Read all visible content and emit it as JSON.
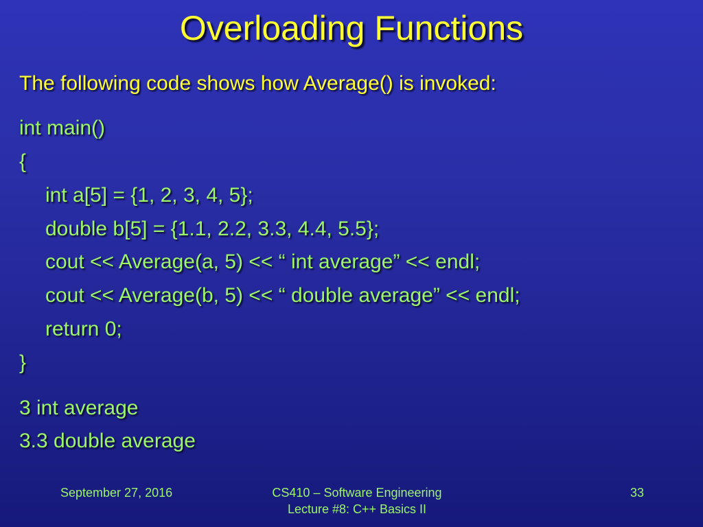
{
  "slide": {
    "title": "Overloading Functions",
    "intro": "The following code shows how Average() is invoked:",
    "code": [
      "int main()",
      "{",
      "int a[5] = {1, 2, 3, 4, 5};",
      "double b[5] = {1.1, 2.2, 3.3, 4.4, 5.5};",
      "cout << Average(a, 5) << “ int average” << endl;",
      "cout << Average(b, 5) << “ double average” << endl;",
      "return 0;",
      "}"
    ],
    "output": [
      "3 int average",
      "3.3 double average"
    ]
  },
  "footer": {
    "date": "September 27, 2016",
    "course_line1": "CS410 – Software Engineering",
    "course_line2": "Lecture #8: C++ Basics II",
    "page_number": "33"
  },
  "colors": {
    "background": "#2a2ea6",
    "title": "#ffff33",
    "body_text": "#9cf56a"
  }
}
